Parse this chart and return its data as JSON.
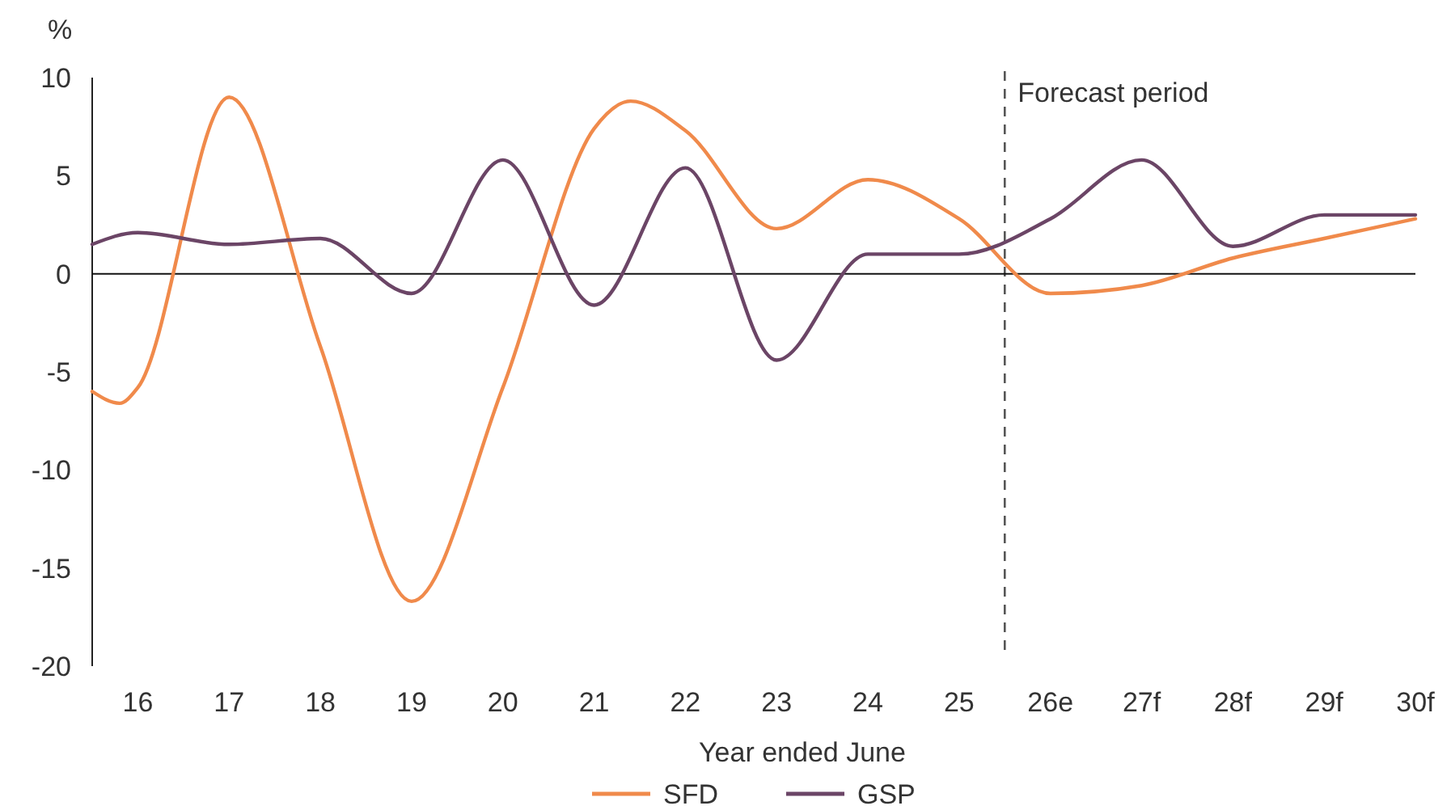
{
  "chart_data": {
    "type": "line",
    "ylabel": "%",
    "xlabel": "Year ended June",
    "xlim": [
      15.5,
      30
    ],
    "xticks": [
      {
        "value": 16,
        "label": "16"
      },
      {
        "value": 17,
        "label": "17"
      },
      {
        "value": 18,
        "label": "18"
      },
      {
        "value": 19,
        "label": "19"
      },
      {
        "value": 20,
        "label": "20"
      },
      {
        "value": 21,
        "label": "21"
      },
      {
        "value": 22,
        "label": "22"
      },
      {
        "value": 23,
        "label": "23"
      },
      {
        "value": 24,
        "label": "24"
      },
      {
        "value": 25,
        "label": "25"
      },
      {
        "value": 26,
        "label": "26e"
      },
      {
        "value": 27,
        "label": "27f"
      },
      {
        "value": 28,
        "label": "28f"
      },
      {
        "value": 29,
        "label": "29f"
      },
      {
        "value": 30,
        "label": "30f"
      }
    ],
    "ylim": [
      -20,
      10
    ],
    "yticks": [
      -20,
      -15,
      -10,
      -5,
      0,
      5,
      10
    ],
    "legend": "bottom",
    "marker": "none",
    "line_style": "solid",
    "ref_lines": [
      {
        "axis": "x",
        "value": 25.5,
        "label": "Forecast period",
        "color": "#555555",
        "line_style": "dashed"
      },
      {
        "axis": "y",
        "value": 0,
        "color": "#111111",
        "line_style": "solid"
      }
    ],
    "series": [
      {
        "name": "SFD",
        "color": "#f08a4b",
        "x": [
          15.5,
          15.8,
          16,
          17,
          18,
          19,
          20,
          21,
          21.4,
          22,
          23,
          24,
          25,
          26,
          27,
          28,
          29,
          30
        ],
        "values": [
          -6.0,
          -6.6,
          -5.8,
          9.0,
          -3.7,
          -16.7,
          -5.8,
          7.4,
          8.8,
          7.3,
          2.3,
          4.8,
          2.8,
          -1.0,
          -0.6,
          0.8,
          1.8,
          2.8
        ]
      },
      {
        "name": "GSP",
        "color": "#6b4566",
        "x": [
          15.5,
          16,
          17,
          18,
          19,
          20,
          21,
          22,
          23,
          24,
          25,
          26,
          27,
          28,
          29,
          30
        ],
        "values": [
          1.5,
          2.1,
          1.5,
          1.8,
          -1.0,
          5.8,
          -1.6,
          5.4,
          -4.4,
          1.0,
          1.0,
          2.8,
          5.8,
          1.4,
          3.0,
          3.0
        ]
      }
    ]
  }
}
